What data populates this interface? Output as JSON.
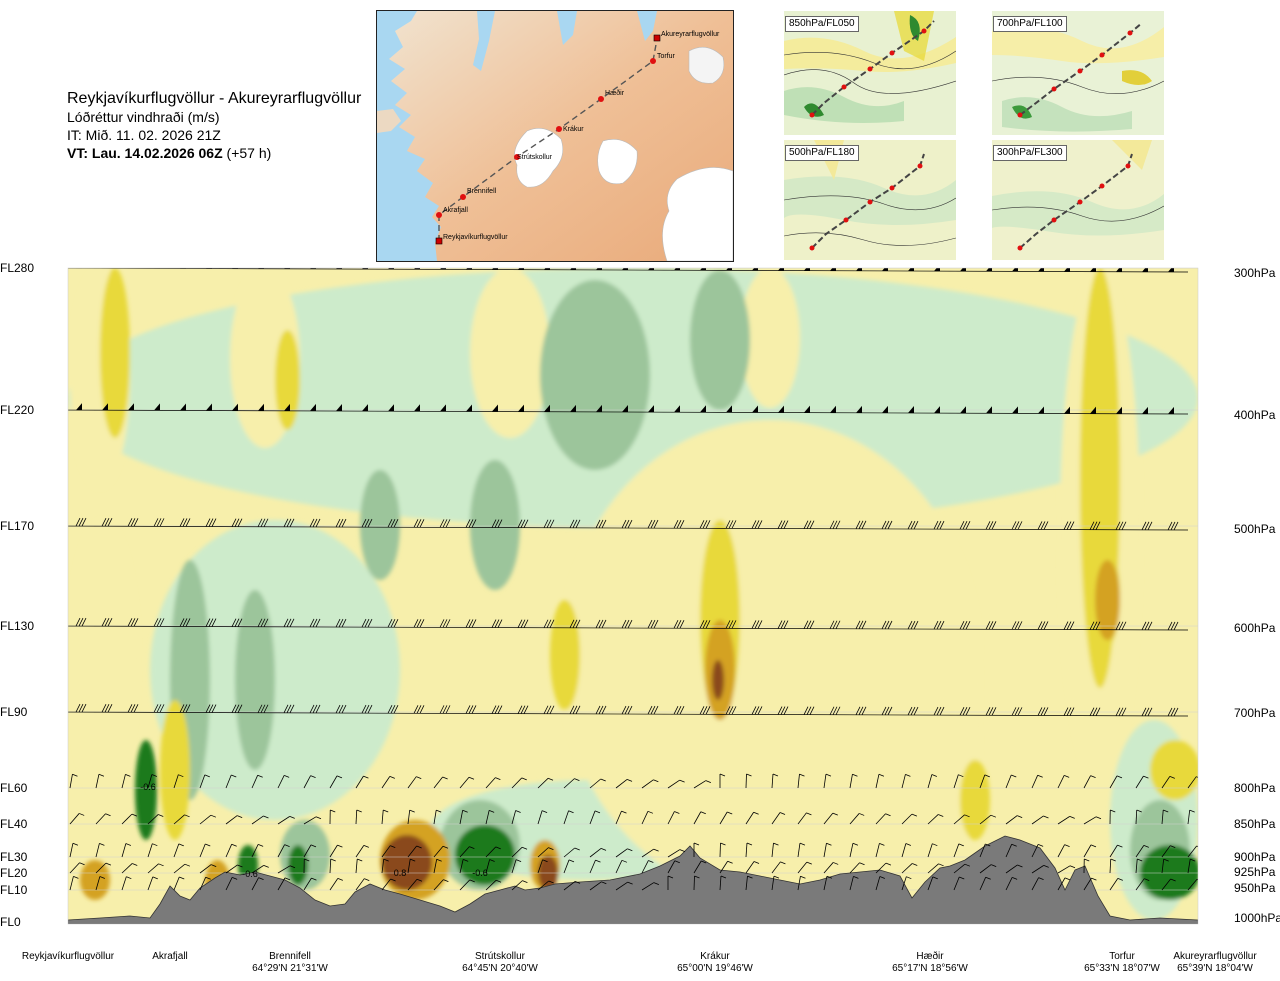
{
  "header": {
    "route": "Reykjavíkurflugvöllur - Akureyrarflugvöllur",
    "variable": "Lóðréttur vindhraði (m/s)",
    "it": "IT: Mið. 11. 02. 2026 21Z",
    "vt_bold": "VT: Lau. 14.02.2026 06Z",
    "vt_rest": " (+57 h)"
  },
  "map": {
    "stations": [
      {
        "name": "Akureyrarflugvöllur",
        "kind": "square"
      },
      {
        "name": "Torfur",
        "kind": "dot"
      },
      {
        "name": "Hæðir",
        "kind": "dot"
      },
      {
        "name": "Krákur",
        "kind": "dot"
      },
      {
        "name": "Strútskollur",
        "kind": "dot"
      },
      {
        "name": "Brennifell",
        "kind": "dot"
      },
      {
        "name": "Akrafjall",
        "kind": "dot"
      },
      {
        "name": "Reykjavíkurflugvöllur",
        "kind": "square"
      }
    ]
  },
  "panels": [
    {
      "label": "850hPa/FL050"
    },
    {
      "label": "700hPa/FL100"
    },
    {
      "label": "500hPa/FL180"
    },
    {
      "label": "300hPa/FL300"
    }
  ],
  "colors": {
    "strong_down": "#1f7a1f",
    "mod_down": "#9cc59b",
    "weak_down": "#cdebcb",
    "weak_up": "#f7efab",
    "mod_up": "#e8d93a",
    "strong_up": "#d4a224",
    "very_strong_up": "#8a4a1b",
    "terrain": "#7a7a7a"
  },
  "chart_data": {
    "type": "heatmap",
    "title": "Lóðréttur vindhraði (m/s)",
    "left_axis_labels": [
      "FL280",
      "FL220",
      "FL170",
      "FL130",
      "FL90",
      "FL60",
      "FL40",
      "FL30",
      "FL20",
      "FL10",
      "FL0"
    ],
    "right_axis_labels": [
      "300hPa",
      "400hPa",
      "500hPa",
      "600hPa",
      "700hPa",
      "800hPa",
      "850hPa",
      "900hPa",
      "925hPa",
      "950hPa",
      "1000hPa"
    ],
    "route_points": [
      {
        "name": "Reykjavíkurflugvöllur",
        "coord": ""
      },
      {
        "name": "Akrafjall",
        "coord": ""
      },
      {
        "name": "Brennifell",
        "coord": "64°29'N 21°31'W"
      },
      {
        "name": "Strútskollur",
        "coord": "64°45'N 20°40'W"
      },
      {
        "name": "Krákur",
        "coord": "65°00'N 19°46'W"
      },
      {
        "name": "Hæðir",
        "coord": "65°17'N 18°56'W"
      },
      {
        "name": "Torfur",
        "coord": "65°33'N 18°07'W"
      },
      {
        "name": "Akureyrarflugvöllur",
        "coord": "65°39'N 18°04'W"
      }
    ],
    "contour_labels": [
      "-0.6",
      "-0.6",
      "0.8",
      "-0.6"
    ]
  }
}
